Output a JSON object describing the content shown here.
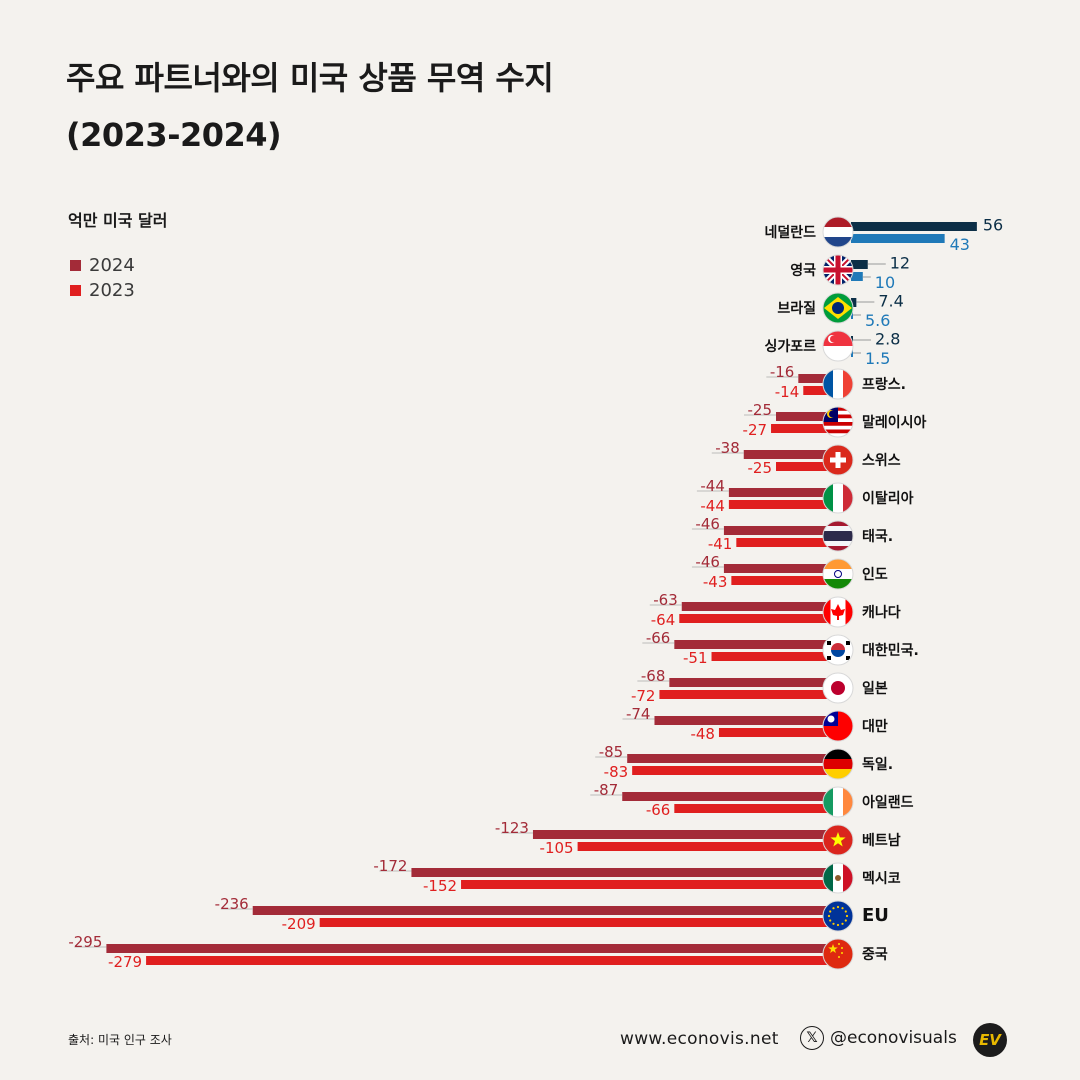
{
  "header": {
    "title_line1": "주요 파트너와의 미국 상품 무역 수지",
    "title_line2": "(2023-2024)",
    "unit_label": "억만 미국 달러"
  },
  "legend": [
    {
      "label": "2024",
      "color": "#a32b38"
    },
    {
      "label": "2023",
      "color": "#e01f1f"
    }
  ],
  "chart_data": {
    "type": "bar",
    "orientation": "horizontal",
    "categories": [
      "네덜란드",
      "영국",
      "브라질",
      "싱가포르",
      "프랑스.",
      "말레이시아",
      "스위스",
      "이탈리아",
      "태국.",
      "인도",
      "캐나다",
      "대한민국.",
      "일본",
      "대만",
      "독일.",
      "아일랜드",
      "베트남",
      "멕시코",
      "EU",
      "중국"
    ],
    "flags": [
      "flag-netherlands",
      "flag-uk",
      "flag-brazil",
      "flag-singapore",
      "flag-france",
      "flag-malaysia",
      "flag-switzerland",
      "flag-italy",
      "flag-thailand",
      "flag-india",
      "flag-canada",
      "flag-south-korea",
      "flag-japan",
      "flag-taiwan",
      "flag-germany",
      "flag-ireland",
      "flag-vietnam",
      "flag-mexico",
      "flag-eu",
      "flag-china"
    ],
    "series": [
      {
        "name": "2024",
        "values": [
          56,
          12,
          7.4,
          2.8,
          -16,
          -25,
          -38,
          -44,
          -46,
          -46,
          -63,
          -66,
          -68,
          -74,
          -85,
          -87,
          -123,
          -172,
          -236,
          -295
        ]
      },
      {
        "name": "2023",
        "values": [
          43,
          10,
          5.6,
          1.5,
          -14,
          -27,
          -25,
          -44,
          -41,
          -43,
          -64,
          -51,
          -72,
          -48,
          -83,
          -66,
          -105,
          -152,
          -209,
          -279
        ]
      }
    ],
    "colors": {
      "positive_2024": "#0c2f47",
      "positive_2023": "#1f79b8",
      "negative_2024": "#a32b38",
      "negative_2023": "#e01f1f"
    }
  },
  "footer": {
    "source": "출처: 미국 인구 조사",
    "website": "www.econovis.net",
    "social_handle": "@econovisuals",
    "x_icon_glyph": "𝕏",
    "logo_text": "EV"
  }
}
